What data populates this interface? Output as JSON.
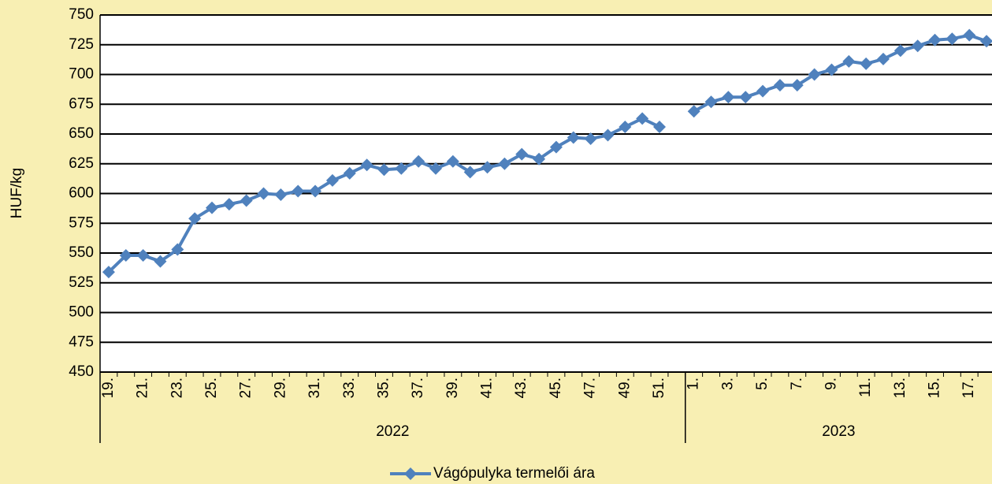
{
  "chart_data": {
    "type": "line",
    "y_label": "HUF/kg",
    "categories": [
      "19.",
      null,
      "21.",
      null,
      "23.",
      null,
      "25.",
      null,
      "27.",
      null,
      "29.",
      null,
      "31.",
      null,
      "33.",
      null,
      "35.",
      null,
      "37.",
      null,
      "39.",
      null,
      "41.",
      null,
      "43.",
      null,
      "45.",
      null,
      "47.",
      null,
      "49.",
      null,
      "51.",
      null,
      "1.",
      null,
      "3.",
      null,
      "5.",
      null,
      "7.",
      null,
      "9.",
      null,
      "11.",
      null,
      "13.",
      null,
      "15.",
      null,
      "17.",
      null
    ],
    "groups": [
      {
        "name": "2022",
        "start": 0,
        "end": 33
      },
      {
        "name": "2023",
        "start": 34,
        "end": 51
      }
    ],
    "series": [
      {
        "name": "Vágópulyka termelői ára",
        "color": "#4f81bd",
        "values": [
          534,
          548,
          548,
          543,
          553,
          579,
          588,
          591,
          594,
          600,
          599,
          602,
          602,
          611,
          617,
          624,
          620,
          621,
          627,
          621,
          627,
          618,
          622,
          625,
          633,
          629,
          639,
          647,
          646,
          649,
          656,
          663,
          656,
          null,
          669,
          677,
          681,
          681,
          686,
          691,
          691,
          700,
          704,
          711,
          709,
          713,
          720,
          724,
          729,
          730,
          733,
          728
        ]
      }
    ],
    "ylim": [
      450,
      750
    ],
    "yticks": [
      450,
      475,
      500,
      525,
      550,
      575,
      600,
      625,
      650,
      675,
      700,
      725,
      750
    ],
    "grid": true,
    "legend": "bottom"
  }
}
